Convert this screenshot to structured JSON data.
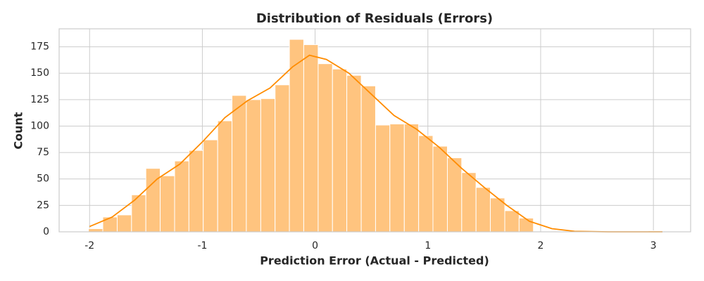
{
  "chart_data": {
    "type": "histogram",
    "title": "Distribution of Residuals (Errors)",
    "x_label": "Prediction Error (Actual - Predicted)",
    "y_label": "Count",
    "bins": [
      -2.01,
      -1.883,
      -1.755,
      -1.628,
      -1.501,
      -1.374,
      -1.246,
      -1.119,
      -0.992,
      -0.864,
      -0.737,
      -0.61,
      -0.482,
      -0.355,
      -0.228,
      -0.101,
      0.027,
      0.154,
      0.281,
      0.409,
      0.536,
      0.663,
      0.791,
      0.918,
      1.045,
      1.173,
      1.3,
      1.427,
      1.554,
      1.682,
      1.809,
      1.936,
      2.064,
      2.191,
      2.318,
      2.446,
      2.573,
      2.7,
      2.828,
      2.955,
      3.082
    ],
    "values": [
      3,
      14,
      16,
      35,
      60,
      53,
      67,
      77,
      87,
      105,
      129,
      125,
      126,
      139,
      182,
      177,
      159,
      154,
      148,
      138,
      101,
      102,
      102,
      91,
      81,
      70,
      56,
      42,
      32,
      20,
      13,
      0,
      0,
      0,
      0,
      0,
      0,
      0,
      0,
      1
    ],
    "color": "#ffc47f",
    "kde": {
      "color": "#ff8c00",
      "x": [
        -2.0,
        -1.8,
        -1.6,
        -1.4,
        -1.2,
        -1.0,
        -0.8,
        -0.6,
        -0.4,
        -0.2,
        -0.05,
        0.1,
        0.3,
        0.5,
        0.7,
        0.9,
        1.1,
        1.3,
        1.5,
        1.7,
        1.9,
        2.1,
        2.3,
        2.6,
        3.08
      ],
      "values": [
        5,
        14,
        30,
        50,
        64,
        85,
        108,
        124,
        136,
        156,
        167,
        163,
        150,
        130,
        110,
        97,
        80,
        60,
        42,
        25,
        10,
        3,
        0.5,
        0,
        0
      ]
    },
    "xlim": [
      -2.27,
      3.33
    ],
    "ylim": [
      0,
      192
    ],
    "xticks": [
      -2,
      -1,
      0,
      1,
      2,
      3
    ],
    "yticks": [
      0,
      25,
      50,
      75,
      100,
      125,
      150,
      175
    ],
    "grid": true
  }
}
